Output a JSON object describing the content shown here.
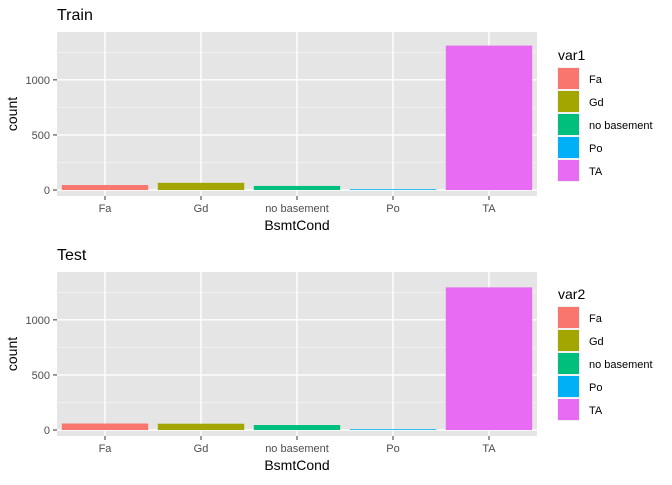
{
  "colors": {
    "panel": "#e5e5e5",
    "grid_major": "#ffffff",
    "grid_minor": "#f2f2f2",
    "axis_text": "#4d4d4d",
    "categories": [
      "#f8766d",
      "#a3a500",
      "#00bf7d",
      "#00b0f6",
      "#e76bf3"
    ]
  },
  "chart_data": [
    {
      "type": "bar",
      "title": "Train",
      "xlabel": "BsmtCond",
      "ylabel": "count",
      "categories": [
        "Fa",
        "Gd",
        "no basement",
        "Po",
        "TA"
      ],
      "values": [
        45,
        65,
        37,
        2,
        1311
      ],
      "ylim": [
        0,
        1380
      ],
      "yticks": [
        0,
        500,
        1000
      ],
      "legend": {
        "title": "var1",
        "position": "right",
        "entries": [
          "Fa",
          "Gd",
          "no basement",
          "Po",
          "TA"
        ]
      },
      "grid": true
    },
    {
      "type": "bar",
      "title": "Test",
      "xlabel": "BsmtCond",
      "ylabel": "count",
      "categories": [
        "Fa",
        "Gd",
        "no basement",
        "Po",
        "TA"
      ],
      "values": [
        59,
        57,
        45,
        3,
        1295
      ],
      "ylim": [
        0,
        1380
      ],
      "yticks": [
        0,
        500,
        1000
      ],
      "legend": {
        "title": "var2",
        "position": "right",
        "entries": [
          "Fa",
          "Gd",
          "no basement",
          "Po",
          "TA"
        ]
      },
      "grid": true
    }
  ]
}
